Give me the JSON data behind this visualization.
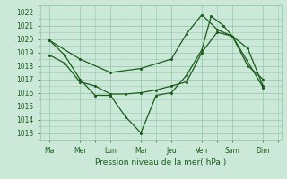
{
  "xlabel": "Pression niveau de la mer( hPa )",
  "ylim": [
    1012.5,
    1022.5
  ],
  "yticks": [
    1013,
    1014,
    1015,
    1016,
    1017,
    1018,
    1019,
    1020,
    1021,
    1022
  ],
  "x_day_labels": [
    "Ma",
    "Mer",
    "Lun",
    "Mar",
    "Jeu",
    "Ven",
    "Sam",
    "Dim"
  ],
  "x_day_positions": [
    0,
    1,
    2,
    3,
    4,
    5,
    6,
    7
  ],
  "xlim": [
    -0.3,
    7.6
  ],
  "background_color": "#cce8d8",
  "grid_color": "#99ccb0",
  "line_color": "#1a5c1a",
  "series1": {
    "x": [
      0.0,
      0.5,
      1.0,
      1.5,
      2.0,
      2.5,
      3.0,
      3.5,
      4.0,
      4.5,
      5.0,
      5.3,
      5.7,
      6.0,
      6.5,
      7.0
    ],
    "y": [
      1019.9,
      1018.8,
      1017.0,
      1015.8,
      1015.8,
      1014.2,
      1013.0,
      1015.8,
      1016.0,
      1017.3,
      1019.2,
      1021.7,
      1021.0,
      1020.2,
      1018.0,
      1017.0
    ]
  },
  "series2": {
    "x": [
      0.0,
      0.5,
      1.0,
      1.5,
      2.0,
      2.5,
      3.0,
      3.5,
      4.0,
      4.5,
      5.0,
      5.5,
      6.0,
      6.5,
      7.0
    ],
    "y": [
      1018.8,
      1018.2,
      1016.8,
      1016.5,
      1015.9,
      1015.9,
      1016.0,
      1016.2,
      1016.5,
      1016.8,
      1019.0,
      1020.5,
      1020.2,
      1019.3,
      1016.5
    ]
  },
  "series3": {
    "x": [
      0.0,
      1.0,
      2.0,
      3.0,
      4.0,
      4.5,
      5.0,
      5.5,
      6.0,
      7.0
    ],
    "y": [
      1019.9,
      1018.5,
      1017.5,
      1017.8,
      1018.5,
      1020.4,
      1021.8,
      1020.7,
      1020.2,
      1016.4
    ]
  }
}
